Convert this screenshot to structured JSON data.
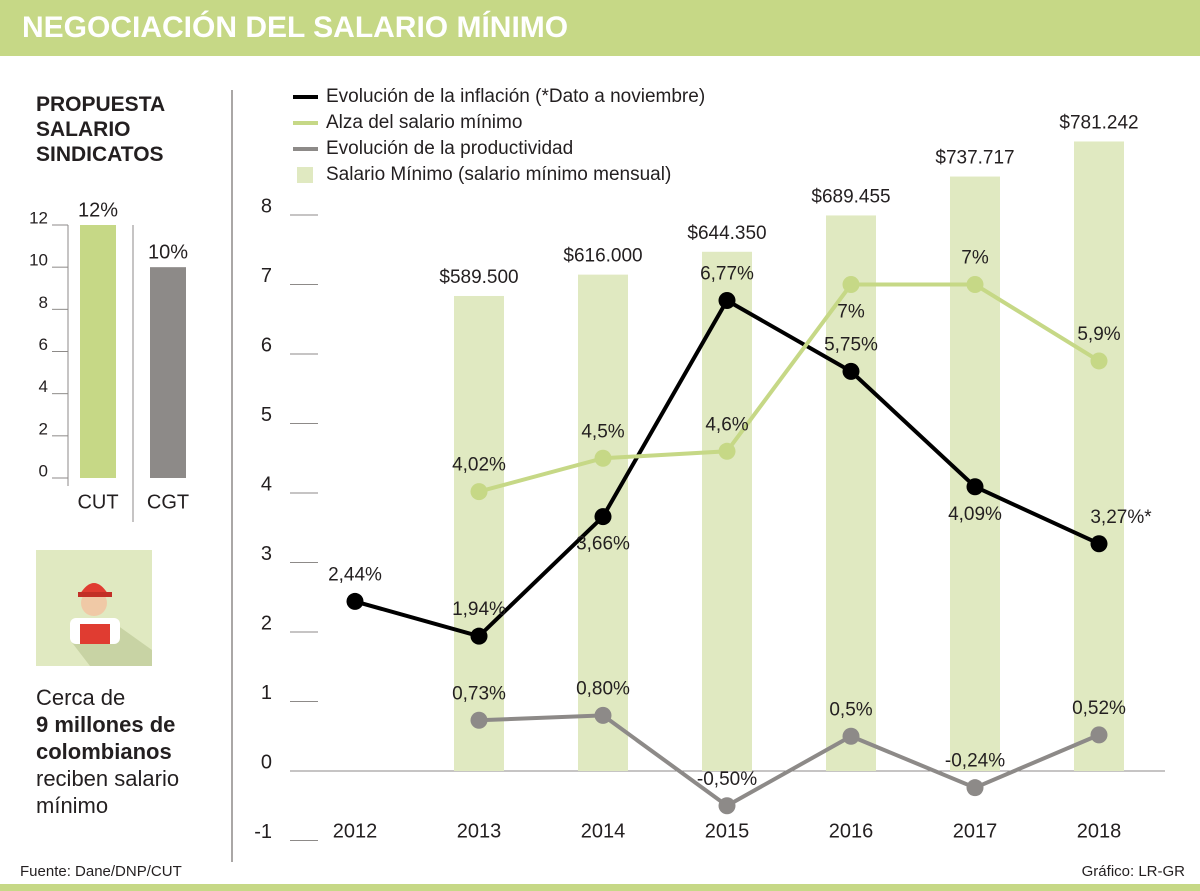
{
  "title": "NEGOCIACIÓN DEL SALARIO MÍNIMO",
  "note": {
    "lead": "Cerca de",
    "highlight": "9 millones de colombianos",
    "tail": "reciben salario mínimo"
  },
  "source": "Fuente: Dane/DNP/CUT",
  "credit": "Gráfico: LR-GR",
  "chart_data": [
    {
      "type": "bar",
      "title": "PROPUESTA SALARIO SINDICATOS",
      "categories": [
        "CUT",
        "CGT"
      ],
      "values": [
        12,
        10
      ],
      "value_labels": [
        "12%",
        "10%"
      ],
      "colors": [
        "#c6d886",
        "#8d8a88"
      ],
      "ylim": [
        0,
        12
      ],
      "yticks": [
        0,
        2,
        4,
        6,
        8,
        10,
        12
      ]
    },
    {
      "type": "line",
      "categories": [
        "2012",
        "2013",
        "2014",
        "2015",
        "2016",
        "2017",
        "2018"
      ],
      "ylim": [
        -1,
        8
      ],
      "yticks": [
        -1,
        0,
        1,
        2,
        3,
        4,
        5,
        6,
        7,
        8
      ],
      "y2lim": [
        -86250,
        690000
      ],
      "series": [
        {
          "name": "Evolución de la inflación (*Dato a noviembre)",
          "type": "line",
          "color": "#000000",
          "values": [
            2.44,
            1.94,
            3.66,
            6.77,
            5.75,
            4.09,
            3.27
          ],
          "value_labels": [
            "2,44%",
            "1,94%",
            "3,66%",
            "6,77%",
            "5,75%",
            "4,09%",
            "3,27%*"
          ]
        },
        {
          "name": "Alza del salario mínimo",
          "type": "line",
          "color": "#c6d886",
          "values": [
            null,
            4.02,
            4.5,
            4.6,
            7,
            7,
            5.9
          ],
          "value_labels": [
            null,
            "4,02%",
            "4,5%",
            "4,6%",
            "7%",
            "7%",
            "5,9%"
          ]
        },
        {
          "name": "Evolución de la productividad",
          "type": "line",
          "color": "#8d8a88",
          "values": [
            null,
            0.73,
            0.8,
            -0.5,
            0.5,
            -0.24,
            0.52
          ],
          "value_labels": [
            null,
            "0,73%",
            "0,80%",
            "-0,50%",
            "0,5%",
            "-0,24%",
            "0,52%"
          ]
        },
        {
          "name": "Salario Mínimo (salario mínimo mensual)",
          "type": "bar",
          "axis": "y2",
          "color": "#e0e9c1",
          "values": [
            null,
            589500,
            616000,
            644350,
            689455,
            737717,
            781242
          ],
          "value_labels": [
            null,
            "$589.500",
            "$616.000",
            "$644.350",
            "$689.455",
            "$737.717",
            "$781.242"
          ]
        }
      ]
    }
  ]
}
